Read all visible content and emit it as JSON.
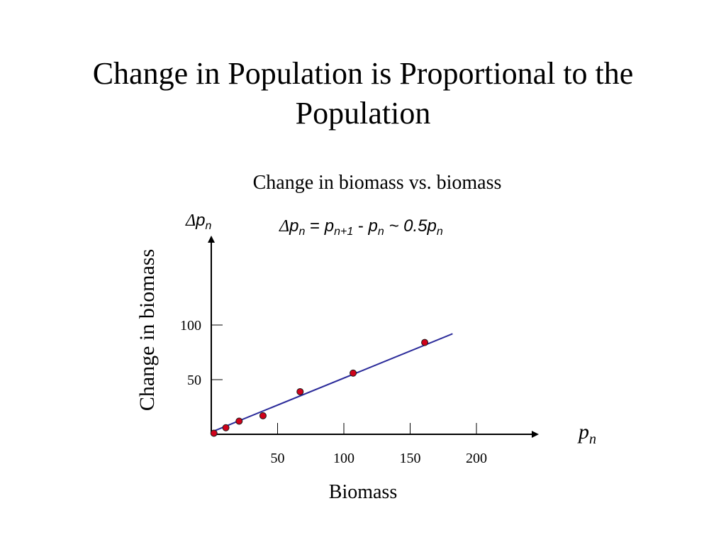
{
  "slide": {
    "title": "Change in Population is Proportional to the Population"
  },
  "chart_data": {
    "type": "scatter",
    "title": "Change in biomass vs. biomass",
    "xlabel": "Biomass",
    "ylabel": "Change in biomass",
    "x_axis_symbol": {
      "base": "p",
      "sub": "n"
    },
    "y_axis_symbol": {
      "delta": "Δ",
      "base": "p",
      "sub": "n"
    },
    "equation": {
      "delta": "Δ",
      "p1": "p",
      "s1": "n",
      "eq": " = ",
      "p2": "p",
      "s2": "n+1",
      "minus": " - ",
      "p3": "p",
      "s3": "n",
      "tilde": " ~ 0.5",
      "p4": "p",
      "s4": "n"
    },
    "xlim": [
      0,
      250
    ],
    "ylim": [
      0,
      160
    ],
    "x_ticks": [
      50,
      100,
      150,
      200
    ],
    "x_tick_labels": [
      "50",
      "100",
      "150",
      "200"
    ],
    "y_ticks": [
      50,
      100
    ],
    "y_tick_labels": [
      "50",
      "100"
    ],
    "grid": false,
    "points": [
      {
        "x": 2,
        "y": 1
      },
      {
        "x": 11,
        "y": 6
      },
      {
        "x": 21,
        "y": 12
      },
      {
        "x": 39,
        "y": 17
      },
      {
        "x": 67,
        "y": 39
      },
      {
        "x": 107,
        "y": 56
      },
      {
        "x": 161,
        "y": 84
      }
    ],
    "fit_line": {
      "x": [
        0,
        182
      ],
      "y": [
        2,
        92
      ]
    },
    "colors": {
      "point_fill": "#d0021b",
      "point_stroke": "#1a1a1a",
      "line": "#2b2b9a",
      "axis": "#000000"
    }
  }
}
